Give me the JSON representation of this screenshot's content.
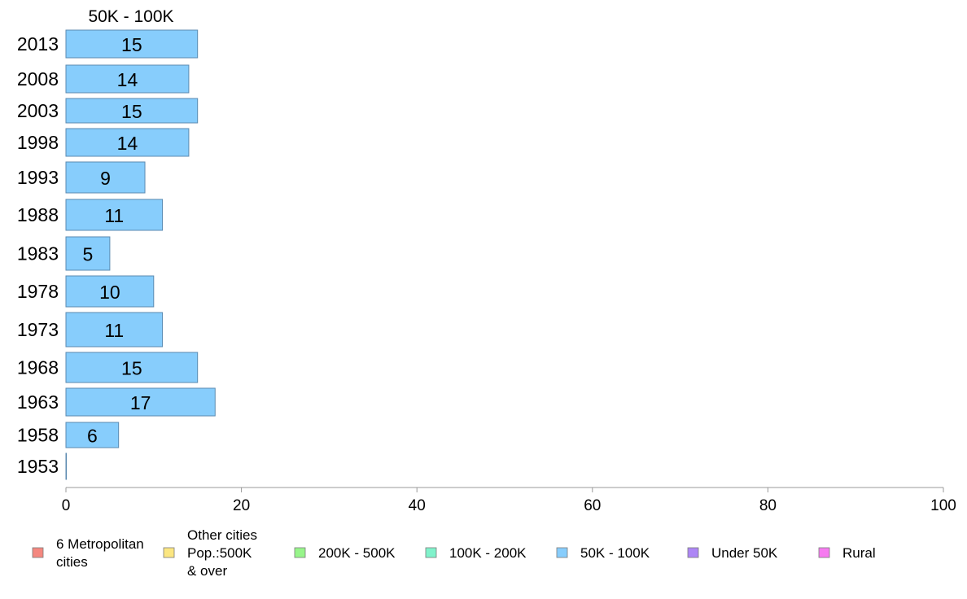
{
  "chart_data": {
    "type": "bar",
    "orientation": "horizontal",
    "title": "50K - 100K",
    "categories": [
      "2013",
      "2008",
      "2003",
      "1998",
      "1993",
      "1988",
      "1983",
      "1978",
      "1973",
      "1968",
      "1963",
      "1958",
      "1953"
    ],
    "series": [
      {
        "name": "50K - 100K",
        "color": "#87cdfc",
        "values": [
          15,
          14,
          15,
          14,
          9,
          11,
          5,
          10,
          11,
          15,
          17,
          6,
          0
        ],
        "labels": [
          "15",
          "14",
          "15",
          "14",
          "9",
          "11",
          "5",
          "10",
          "11",
          "15",
          "17",
          "6",
          ""
        ]
      }
    ],
    "xlim": [
      0,
      100
    ],
    "xticks": [
      "0",
      "20",
      "40",
      "60",
      "80",
      "100"
    ],
    "grid": false,
    "legend_position": "bottom",
    "legend": [
      {
        "lines": [
          "6 Metropolitan",
          " cities"
        ],
        "color": "#f4877f"
      },
      {
        "lines": [
          "Other cities",
          "Pop.:500K",
          " & over"
        ],
        "color": "#fbe681"
      },
      {
        "lines": [
          "200K - 500K"
        ],
        "color": "#97f58a"
      },
      {
        "lines": [
          "100K - 200K"
        ],
        "color": "#80f2cb"
      },
      {
        "lines": [
          "50K - 100K"
        ],
        "color": "#87cdfc"
      },
      {
        "lines": [
          "Under 50K"
        ],
        "color": "#ad86f5"
      },
      {
        "lines": [
          "Rural"
        ],
        "color": "#f67af0"
      }
    ]
  },
  "colors": {
    "bar_border": "#5b8ab0",
    "axis": "#999999"
  }
}
